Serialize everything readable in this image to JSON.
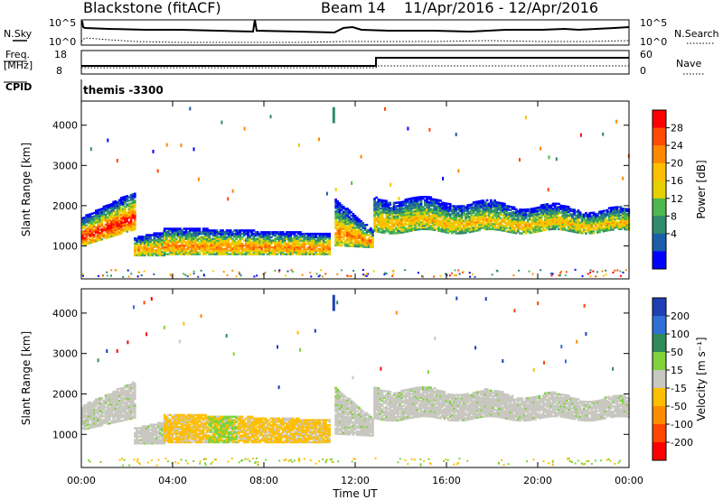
{
  "header": {
    "station": "Blackstone (fitACF)",
    "beam": "Beam 14",
    "date_range": "11/Apr/2016 - 12/Apr/2016"
  },
  "params": {
    "nsky_label": "N.Sky",
    "nsearch_label": "N.Search",
    "left_ticks": [
      "10^5",
      "10^0"
    ],
    "right_ticks": [
      "10^5",
      "10^0"
    ],
    "freq_label": "Freq.",
    "freq_unit": "[MHz]",
    "freq_ticks": [
      "18",
      "8"
    ],
    "nave_label": "Nave",
    "nave_ticks": [
      "60",
      "0"
    ],
    "cpid_label": "CPID",
    "cpid_value": "themis -3300"
  },
  "chart_data": [
    {
      "type": "heatmap",
      "name": "power",
      "ylabel": "Slant Range [km]",
      "yticks": [
        1000,
        2000,
        3000,
        4000
      ],
      "ylim": [
        180,
        4600
      ],
      "xlim": [
        0,
        24
      ],
      "xtick_labels": [
        "00:00",
        "04:00",
        "08:00",
        "12:00",
        "16:00",
        "20:00",
        "00:00"
      ],
      "colorbar_label": "Power [dB]",
      "colorbar_ticks": [
        "28",
        "24",
        "20",
        "16",
        "12",
        "8",
        "4"
      ],
      "colorbar_colors": [
        "#ff0000",
        "#ff4a00",
        "#ff8800",
        "#ffbf00",
        "#e6d000",
        "#4db84d",
        "#2e8b6e",
        "#1c5ea8",
        "#0000ff"
      ],
      "echo_bands": [
        {
          "t0": 0.0,
          "t1": 2.3,
          "r_lo_start": 1000,
          "r_lo_end": 1400,
          "r_hi_start": 1700,
          "r_hi_end": 2350,
          "peak_db": 28
        },
        {
          "t0": 2.3,
          "t1": 3.6,
          "r_lo_start": 750,
          "r_lo_end": 750,
          "r_hi_start": 1200,
          "r_hi_end": 1350,
          "peak_db": 20
        },
        {
          "t0": 3.6,
          "t1": 10.9,
          "r_lo_start": 780,
          "r_lo_end": 780,
          "r_hi_start": 1450,
          "r_hi_end": 1300,
          "peak_db": 22
        },
        {
          "t0": 11.1,
          "t1": 12.8,
          "r_lo_start": 1000,
          "r_lo_end": 950,
          "r_hi_start": 2150,
          "r_hi_end": 1350,
          "peak_db": 22
        },
        {
          "t0": 12.8,
          "t1": 24.0,
          "r_lo_start": 1350,
          "r_lo_end": 1350,
          "r_hi_start": 2200,
          "r_hi_end": 1850,
          "peak_db": 18
        }
      ]
    },
    {
      "type": "heatmap",
      "name": "velocity",
      "ylabel": "Slant Range [km]",
      "yticks": [
        1000,
        2000,
        3000,
        4000
      ],
      "ylim": [
        180,
        4600
      ],
      "xlim": [
        0,
        24
      ],
      "xtick_labels": [
        "00:00",
        "04:00",
        "08:00",
        "12:00",
        "16:00",
        "20:00",
        "00:00"
      ],
      "xlabel": "Time UT",
      "colorbar_label": "Velocity [m s⁻¹]",
      "colorbar_ticks": [
        "200",
        "100",
        "50",
        "15",
        "-15",
        "-50",
        "-100",
        "-200"
      ],
      "colorbar_colors": [
        "#1e3fb4",
        "#2f6fd6",
        "#2e8b57",
        "#7fd23a",
        "#c8c8c0",
        "#ffbf00",
        "#ff8c00",
        "#ff4500",
        "#ff0000"
      ],
      "echo_bands": [
        {
          "t0": 0.0,
          "t1": 2.3,
          "r_lo_start": 1100,
          "r_lo_end": 1400,
          "r_hi_start": 1700,
          "r_hi_end": 2300,
          "velocity": 0
        },
        {
          "t0": 2.3,
          "t1": 3.6,
          "r_lo_start": 760,
          "r_lo_end": 760,
          "r_hi_start": 1150,
          "r_hi_end": 1300,
          "velocity": 0
        },
        {
          "t0": 3.6,
          "t1": 10.9,
          "r_lo_start": 790,
          "r_lo_end": 790,
          "r_hi_start": 1500,
          "r_hi_end": 1350,
          "velocity": -50
        },
        {
          "t0": 11.1,
          "t1": 12.8,
          "r_lo_start": 1000,
          "r_lo_end": 950,
          "r_hi_start": 2150,
          "r_hi_end": 1350,
          "velocity": 0
        },
        {
          "t0": 12.8,
          "t1": 24.0,
          "r_lo_start": 1380,
          "r_lo_end": 1380,
          "r_hi_start": 2150,
          "r_hi_end": 1850,
          "velocity": 0
        }
      ]
    }
  ]
}
